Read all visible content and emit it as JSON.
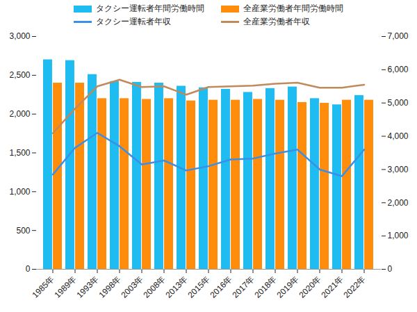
{
  "chart_data": {
    "type": "bar",
    "categories": [
      "1985年",
      "1989年",
      "1993年",
      "1998年",
      "2003年",
      "2008年",
      "2013年",
      "2015年",
      "2016年",
      "2017年",
      "2018年",
      "2019年",
      "2020年",
      "2021年",
      "2022年"
    ],
    "series": [
      {
        "name": "タクシー運転者年間労働時間",
        "type": "bar",
        "axis": "y",
        "color": "#1ebcf0",
        "values": [
          2700,
          2690,
          2510,
          2420,
          2410,
          2400,
          2360,
          2340,
          2320,
          2280,
          2330,
          2350,
          2200,
          2120,
          2240
        ]
      },
      {
        "name": "全産業労働者年間労働時間",
        "type": "bar",
        "axis": "y",
        "color": "#ff8c0a",
        "values": [
          2400,
          2400,
          2200,
          2200,
          2190,
          2200,
          2170,
          2180,
          2180,
          2190,
          2180,
          2150,
          2140,
          2180,
          2180
        ]
      },
      {
        "name": "タクシー運転者年収",
        "type": "line",
        "axis": "y2",
        "color": "#3b8fe6",
        "values": [
          2850,
          3650,
          4100,
          3700,
          3150,
          3270,
          2970,
          3100,
          3300,
          3330,
          3480,
          3600,
          3000,
          2800,
          3600
        ]
      },
      {
        "name": "全産業労働者年収",
        "type": "line",
        "axis": "y2",
        "color": "#c08a5a",
        "values": [
          4090,
          4830,
          5500,
          5700,
          5480,
          5500,
          5250,
          5480,
          5500,
          5520,
          5580,
          5610,
          5460,
          5460,
          5550
        ]
      }
    ],
    "ylim": [
      0,
      3000
    ],
    "yticks": [
      0,
      500,
      {
        "value": 1000,
        "label": "1,000"
      },
      {
        "value": 1500,
        "label": "1,500"
      },
      {
        "value": 2000,
        "label": "2,000"
      },
      {
        "value": 2500,
        "label": "2,500"
      },
      {
        "value": 3000,
        "label": "3,000"
      }
    ],
    "y2lim": [
      0,
      7000
    ],
    "y2ticks": [
      0,
      {
        "value": 1000,
        "label": "1,000"
      },
      {
        "value": 2000,
        "label": "2,000"
      },
      {
        "value": 3000,
        "label": "3,000"
      },
      {
        "value": 4000,
        "label": "4,000"
      },
      {
        "value": 5000,
        "label": "5,000"
      },
      {
        "value": 6000,
        "label": "6,000"
      },
      {
        "value": 7000,
        "label": "7,000"
      }
    ],
    "legend": "top",
    "grid": false
  }
}
